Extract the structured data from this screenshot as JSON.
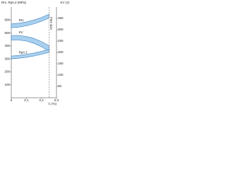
{
  "chart_data": {
    "type": "band",
    "y_label": "Rm, Rp0.2 (MPa)",
    "y2_label": "KV (J)",
    "x_label": "C (%)",
    "x": [
      0,
      0.05,
      0.1,
      0.15,
      0.2,
      0.25
    ],
    "xlim": [
      0,
      0.3
    ],
    "xticks": [
      0,
      0.1,
      0.2,
      0.3
    ],
    "ylim": [
      0,
      700
    ],
    "yticks": [
      100,
      200,
      300,
      400,
      500,
      600
    ],
    "y2lim": [
      0,
      400
    ],
    "y2ticks": [
      50,
      100,
      150,
      200,
      250,
      300,
      350
    ],
    "series": [
      {
        "name": "Rm",
        "color": "#3a7fc0",
        "axis": "y",
        "lower": [
          540,
          545,
          555,
          570,
          590,
          615
        ],
        "upper": [
          570,
          575,
          585,
          600,
          620,
          645
        ]
      },
      {
        "name": "KV",
        "color": "#3a7fc0",
        "axis": "y2",
        "lower": [
          255,
          255,
          250,
          240,
          225,
          205
        ],
        "upper": [
          275,
          275,
          270,
          262,
          248,
          230
        ]
      },
      {
        "name": "Rp0.2",
        "color": "#3a7fc0",
        "axis": "y",
        "lower": [
          300,
          305,
          312,
          322,
          335,
          350
        ],
        "upper": [
          322,
          327,
          335,
          345,
          358,
          374
        ]
      }
    ],
    "annotation": {
      "x": 0.25,
      "text": "Fine size"
    }
  }
}
